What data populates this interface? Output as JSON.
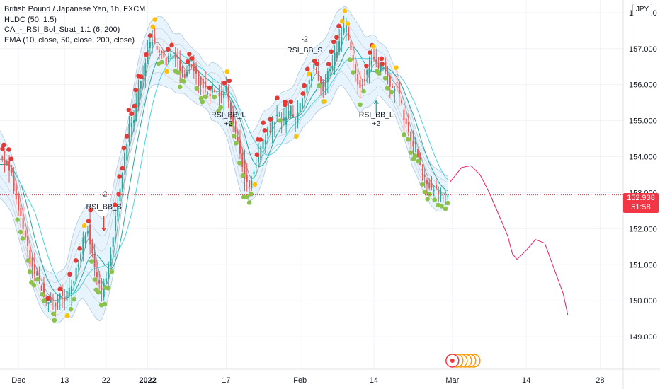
{
  "header": {
    "title": "British Pound / Japanese Yen, 1h, FXCM",
    "indicators": [
      "HLDC (50, 1.5)",
      "CA_-_RSI_Bol_Strat_1.1 (6, 200)",
      "EMA (10, close, 50, close, 200, close)"
    ],
    "currency": "JPY"
  },
  "price_tag": {
    "price": "152.938",
    "countdown": "51:58",
    "color": "#f23645"
  },
  "colors": {
    "band_fill": "#e3f2fd",
    "band_line": "#b2c7d9",
    "ema_fast": "#9e9e9e",
    "ema_mid": "#26a69a",
    "ema_slow": "#4dd0e1",
    "candle_up": "#26a69a",
    "candle_down": "#ef5350",
    "dot_red": "#e53935",
    "dot_yellow": "#ffc107",
    "dot_green": "#8bc34a",
    "projection": "#e91e63",
    "last_price_line": "#f23645"
  },
  "chart_data": {
    "type": "line",
    "title": "British Pound / Japanese Yen, 1h, FXCM",
    "series_kind": "candlestick with Bollinger bands, EMAs and signal dots (approximate close path)",
    "y_axis": {
      "ticks": [
        149.0,
        150.0,
        151.0,
        152.0,
        153.0,
        154.0,
        155.0,
        156.0,
        157.0,
        158.0
      ],
      "tick_labels": [
        "149.000",
        "150.000",
        "151.000",
        "152.000",
        "153.000",
        "154.000",
        "155.000",
        "156.000",
        "157.000",
        "158.000"
      ],
      "ylim": [
        148.1,
        158.35
      ]
    },
    "x_axis": {
      "tick_labels": [
        "Dec",
        "13",
        "22",
        "2022",
        "17",
        "Feb",
        "14",
        "Mar",
        "14",
        "28"
      ],
      "tick_index": [
        0,
        10,
        19,
        28,
        45,
        61,
        77,
        94,
        110,
        126
      ],
      "xlim_index": [
        -4,
        131
      ]
    },
    "close_path": [
      [
        -4,
        154.0
      ],
      [
        -2,
        153.7
      ],
      [
        0,
        152.6
      ],
      [
        1,
        152.0
      ],
      [
        2,
        151.4
      ],
      [
        3,
        150.9
      ],
      [
        4,
        150.6
      ],
      [
        5,
        150.4
      ],
      [
        6,
        150.0
      ],
      [
        7,
        150.1
      ],
      [
        8,
        149.9
      ],
      [
        9,
        150.2
      ],
      [
        10,
        150.0
      ],
      [
        11,
        150.3
      ],
      [
        12,
        150.6
      ],
      [
        13,
        151.1
      ],
      [
        14,
        151.7
      ],
      [
        15,
        152.0
      ],
      [
        16,
        151.2
      ],
      [
        17,
        150.6
      ],
      [
        18,
        150.2
      ],
      [
        19,
        150.6
      ],
      [
        20,
        151.4
      ],
      [
        21,
        152.3
      ],
      [
        22,
        153.2
      ],
      [
        23,
        154.0
      ],
      [
        24,
        154.8
      ],
      [
        25,
        155.1
      ],
      [
        26,
        155.9
      ],
      [
        27,
        156.3
      ],
      [
        28,
        157.0
      ],
      [
        29,
        157.3
      ],
      [
        30,
        157.1
      ],
      [
        31,
        156.9
      ],
      [
        32,
        156.5
      ],
      [
        33,
        156.9
      ],
      [
        34,
        156.8
      ],
      [
        35,
        156.5
      ],
      [
        36,
        156.2
      ],
      [
        37,
        156.6
      ],
      [
        38,
        156.4
      ],
      [
        39,
        156.1
      ],
      [
        40,
        156.0
      ],
      [
        41,
        155.7
      ],
      [
        42,
        155.9
      ],
      [
        43,
        155.8
      ],
      [
        44,
        155.6
      ],
      [
        45,
        155.9
      ],
      [
        46,
        155.1
      ],
      [
        47,
        154.6
      ],
      [
        48,
        154.1
      ],
      [
        49,
        153.5
      ],
      [
        50,
        153.2
      ],
      [
        51,
        153.6
      ],
      [
        52,
        154.0
      ],
      [
        53,
        154.4
      ],
      [
        54,
        154.7
      ],
      [
        55,
        154.9
      ],
      [
        56,
        155.2
      ],
      [
        57,
        154.9
      ],
      [
        58,
        155.1
      ],
      [
        59,
        155.3
      ],
      [
        60,
        155.0
      ],
      [
        61,
        155.4
      ],
      [
        62,
        155.7
      ],
      [
        63,
        156.2
      ],
      [
        64,
        156.5
      ],
      [
        65,
        156.1
      ],
      [
        66,
        155.9
      ],
      [
        67,
        156.3
      ],
      [
        68,
        156.6
      ],
      [
        69,
        157.0
      ],
      [
        70,
        157.4
      ],
      [
        71,
        157.6
      ],
      [
        72,
        156.9
      ],
      [
        73,
        156.3
      ],
      [
        74,
        155.9
      ],
      [
        75,
        156.2
      ],
      [
        76,
        156.5
      ],
      [
        77,
        156.8
      ],
      [
        78,
        156.4
      ],
      [
        79,
        156.5
      ],
      [
        80,
        156.2
      ],
      [
        81,
        155.9
      ],
      [
        82,
        156.0
      ],
      [
        83,
        155.4
      ],
      [
        84,
        154.9
      ],
      [
        85,
        154.5
      ],
      [
        86,
        154.3
      ],
      [
        87,
        153.7
      ],
      [
        88,
        153.4
      ],
      [
        89,
        153.2
      ],
      [
        90,
        153.1
      ],
      [
        91,
        153.0
      ],
      [
        92,
        152.95
      ],
      [
        93,
        152.938
      ]
    ],
    "projection_path": [
      [
        93.5,
        153.3
      ],
      [
        96,
        153.7
      ],
      [
        98,
        153.75
      ],
      [
        100,
        153.5
      ],
      [
        102,
        153.0
      ],
      [
        104,
        152.4
      ],
      [
        106,
        151.8
      ],
      [
        107,
        151.3
      ],
      [
        108,
        151.15
      ],
      [
        110,
        151.4
      ],
      [
        112,
        151.7
      ],
      [
        114,
        151.6
      ],
      [
        116,
        150.9
      ],
      [
        118,
        150.2
      ],
      [
        119,
        149.6
      ]
    ],
    "last_price": 152.938,
    "annotations": [
      {
        "text": "-2",
        "x_index": 18.5,
        "y": 152.9
      },
      {
        "text": "RSI_BB_S",
        "x_index": 18.5,
        "y": 152.55
      },
      {
        "text": "-2",
        "x_index": 62,
        "y": 157.2
      },
      {
        "text": "RSI_BB_S",
        "x_index": 62,
        "y": 156.9
      },
      {
        "text": "RSI_BB_L",
        "x_index": 45.5,
        "y": 155.1
      },
      {
        "text": "+2",
        "x_index": 45.5,
        "y": 154.85
      },
      {
        "text": "RSI_BB_L",
        "x_index": 77.5,
        "y": 155.1
      },
      {
        "text": "+2",
        "x_index": 77.5,
        "y": 154.85
      }
    ]
  }
}
